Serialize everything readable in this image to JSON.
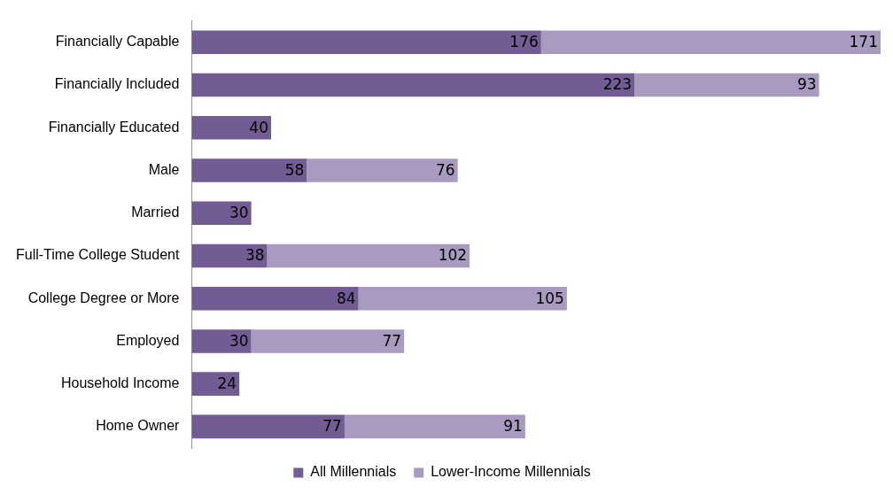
{
  "chart_data": {
    "type": "bar",
    "orientation": "horizontal",
    "stacked": true,
    "data_labels": true,
    "legend": "bottom",
    "categories": [
      "Financially Capable",
      "Financially Included",
      "Financially Educated",
      "Male",
      "Married",
      "Full-Time College Student",
      "College Degree or More",
      "Employed",
      "Household Income",
      "Home Owner"
    ],
    "series": [
      {
        "name": "All Millennials",
        "color": "#735b93",
        "values": [
          176,
          223,
          40,
          58,
          30,
          38,
          84,
          30,
          24,
          77
        ]
      },
      {
        "name": "Lower-Income Millennials",
        "color": "#a99bc0",
        "values": [
          171,
          93,
          null,
          76,
          null,
          102,
          105,
          77,
          null,
          91
        ]
      }
    ]
  }
}
